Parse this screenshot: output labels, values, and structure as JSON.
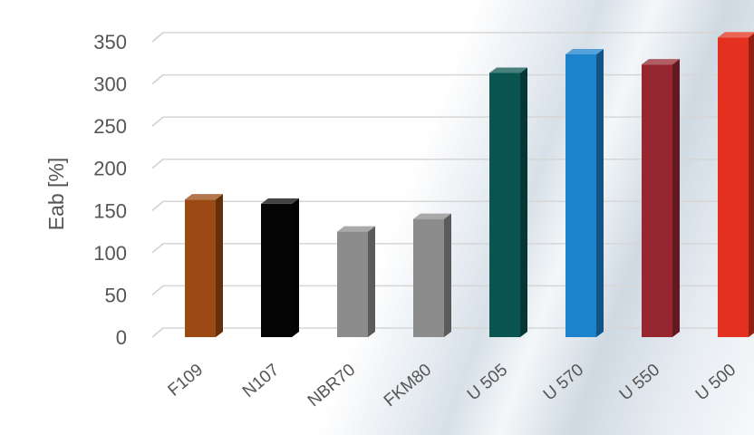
{
  "chart_data": {
    "type": "bar",
    "title": "",
    "xlabel": "",
    "ylabel": "Eab [%]",
    "categories": [
      "F109",
      "N107",
      "NBR70",
      "FKM80",
      "U 505",
      "U 570",
      "U 550",
      "U 500"
    ],
    "values": [
      163,
      158,
      125,
      140,
      313,
      335,
      323,
      355
    ],
    "colors": [
      "#9a4a12",
      "#050505",
      "#8c8c8c",
      "#8c8c8c",
      "#0b5551",
      "#1c82cc",
      "#962730",
      "#e4301e"
    ],
    "ylim": [
      0,
      350
    ],
    "yticks": [
      0,
      50,
      100,
      150,
      200,
      250,
      300,
      350
    ],
    "grid": true,
    "style": "3d-columns"
  }
}
